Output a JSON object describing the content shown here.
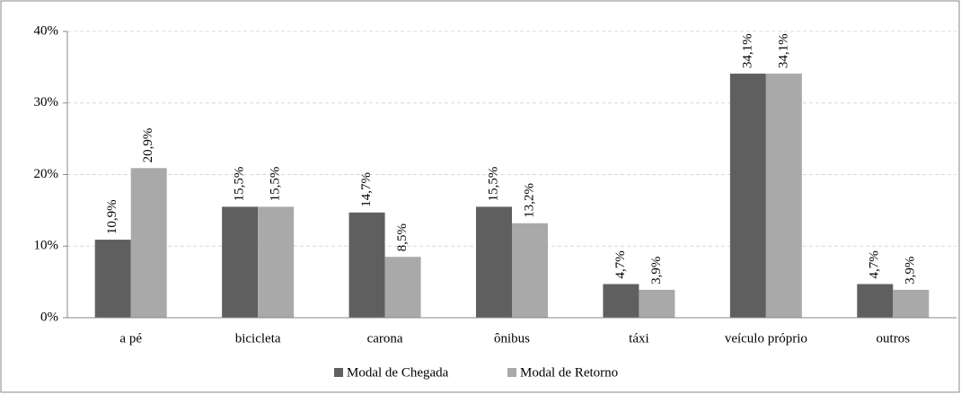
{
  "chart_data": {
    "type": "bar",
    "categories": [
      "a pé",
      "bicicleta",
      "carona",
      "ônibus",
      "táxi",
      "veículo próprio",
      "outros"
    ],
    "series": [
      {
        "name": "Modal de Chegada",
        "color": "#5f5f5f",
        "values": [
          10.9,
          15.5,
          14.7,
          15.5,
          4.7,
          34.1,
          4.7
        ],
        "value_labels": [
          "10,9%",
          "15,5%",
          "14,7%",
          "15,5%",
          "4,7%",
          "34,1%",
          "4,7%"
        ]
      },
      {
        "name": "Modal de Retorno",
        "color": "#a9a9a9",
        "values": [
          20.9,
          15.5,
          8.5,
          13.2,
          3.9,
          34.1,
          3.9
        ],
        "value_labels": [
          "20,9%",
          "15,5%",
          "8,5%",
          "13,2%",
          "3,9%",
          "34,1%",
          "3,9%"
        ]
      }
    ],
    "ylim": [
      0,
      40
    ],
    "yticks": [
      {
        "value": 0,
        "label": "0%"
      },
      {
        "value": 10,
        "label": "10%"
      },
      {
        "value": 20,
        "label": "20%"
      },
      {
        "value": 30,
        "label": "30%"
      },
      {
        "value": 40,
        "label": "40%"
      }
    ],
    "grid": true,
    "legend": "bottom"
  }
}
